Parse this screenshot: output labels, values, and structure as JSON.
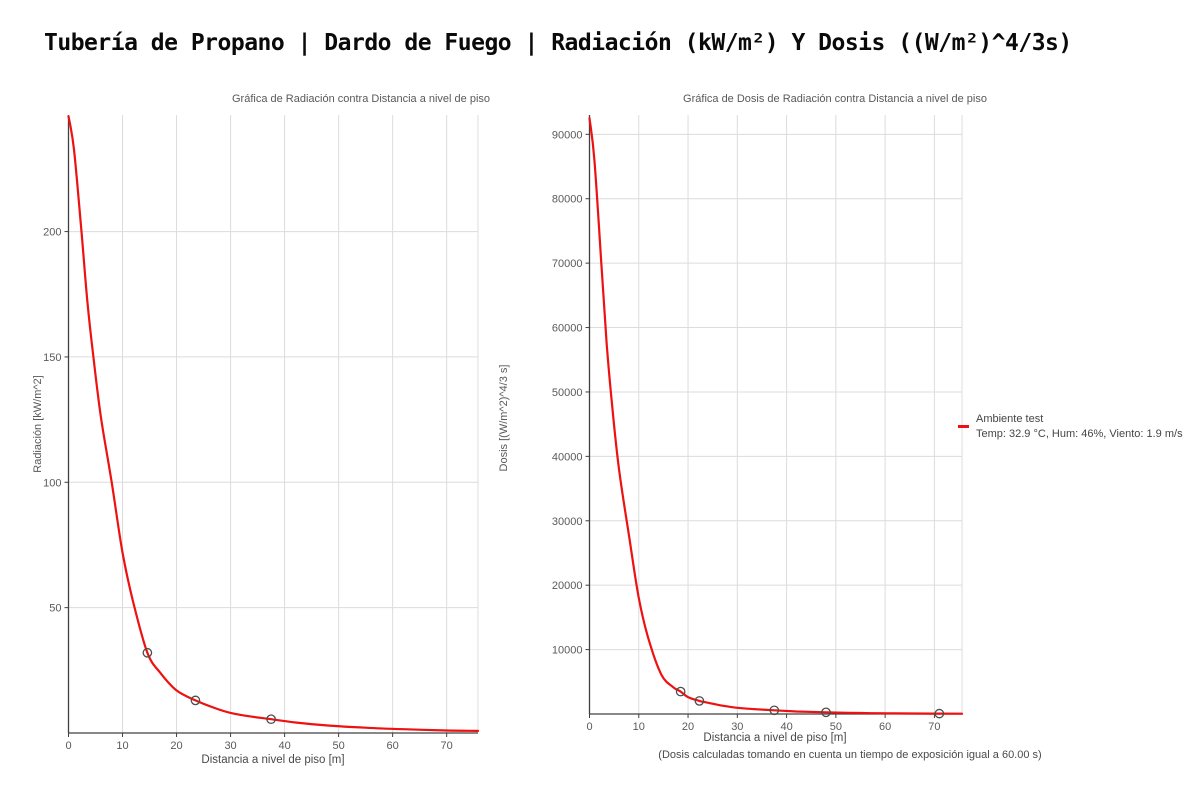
{
  "page": {
    "title": "Tubería de Propano | Dardo de Fuego | Radiación (kW/m²) Y Dosis ((W/m²)^4/3s)"
  },
  "colors": {
    "curve": "#ee1111",
    "axis": "#404040",
    "grid": "#dcdcdc",
    "tick_label": "#5a5a5a",
    "marker_stroke": "#4d4d4d"
  },
  "legend": {
    "series_label": "Ambiente test",
    "series_detail": "Temp: 32.9 °C, Hum: 46%, Viento: 1.9 m/s",
    "marker_color": "#ee1111"
  },
  "chart_data": [
    {
      "type": "line",
      "title": "Gráfica de Radiación contra Distancia a nivel de piso",
      "xlabel": "Distancia a nivel de piso [m]",
      "ylabel": "Radiación [kW/m^2]",
      "xlim": [
        0,
        75.8
      ],
      "ylim": [
        0,
        246.5
      ],
      "x_ticks": [
        0,
        10,
        20,
        30,
        40,
        50,
        60,
        70
      ],
      "y_ticks": [
        50,
        100,
        150,
        200
      ],
      "grid": true,
      "legend_position": "none",
      "series": [
        {
          "name": "Ambiente test",
          "color": "#ee1111",
          "points": [
            [
              0,
              246
            ],
            [
              1,
              233
            ],
            [
              2.4,
              200
            ],
            [
              3.5,
              172
            ],
            [
              4.6,
              150
            ],
            [
              6,
              126
            ],
            [
              8,
              100
            ],
            [
              10,
              72
            ],
            [
              12,
              52
            ],
            [
              14.6,
              32
            ],
            [
              17,
              24
            ],
            [
              20,
              17
            ],
            [
              23.5,
              13
            ],
            [
              27,
              10
            ],
            [
              30,
              8
            ],
            [
              34,
              6.5
            ],
            [
              37.5,
              5.5
            ],
            [
              42,
              4.2
            ],
            [
              48,
              3
            ],
            [
              55,
              2.1
            ],
            [
              62,
              1.5
            ],
            [
              70,
              1
            ],
            [
              75.8,
              0.85
            ]
          ]
        }
      ],
      "markers": [
        [
          14.6,
          32
        ],
        [
          23.5,
          13
        ],
        [
          37.5,
          5.5
        ]
      ]
    },
    {
      "type": "line",
      "title": "Gráfica de Dosis de Radiación contra Distancia a nivel de piso",
      "xlabel": "Distancia a nivel de piso [m]",
      "ylabel": "Dosis [(W/m^2)^4/3 s]",
      "footnote": "(Dosis calculadas tomando en cuenta un tiempo de exposición igual a 60.00 s)",
      "xlim": [
        0,
        75.6
      ],
      "ylim": [
        0,
        93000
      ],
      "x_ticks": [
        0,
        10,
        20,
        30,
        40,
        50,
        60,
        70
      ],
      "y_ticks": [
        10000,
        20000,
        30000,
        40000,
        50000,
        60000,
        70000,
        80000,
        90000
      ],
      "grid": true,
      "legend_position": "right",
      "series": [
        {
          "name": "Ambiente test",
          "color": "#ee1111",
          "points": [
            [
              0,
              92500
            ],
            [
              1,
              86000
            ],
            [
              2.4,
              70000
            ],
            [
              3.5,
              57400
            ],
            [
              4.6,
              47800
            ],
            [
              6,
              37900
            ],
            [
              8,
              27800
            ],
            [
              10,
              18000
            ],
            [
              12,
              11600
            ],
            [
              14.6,
              6100
            ],
            [
              17,
              4150
            ],
            [
              18.5,
              3480
            ],
            [
              20,
              2620
            ],
            [
              22.3,
              2030
            ],
            [
              23.5,
              1830
            ],
            [
              27,
              1290
            ],
            [
              30,
              960
            ],
            [
              34,
              725
            ],
            [
              37.5,
              575
            ],
            [
              42,
              390
            ],
            [
              48,
              260
            ],
            [
              55,
              155
            ],
            [
              62,
              95
            ],
            [
              70,
              60
            ],
            [
              75.6,
              48
            ]
          ]
        }
      ],
      "markers": [
        [
          18.5,
          3480
        ],
        [
          22.3,
          2030
        ],
        [
          37.5,
          575
        ],
        [
          48,
          260
        ],
        [
          71,
          57
        ]
      ]
    }
  ]
}
